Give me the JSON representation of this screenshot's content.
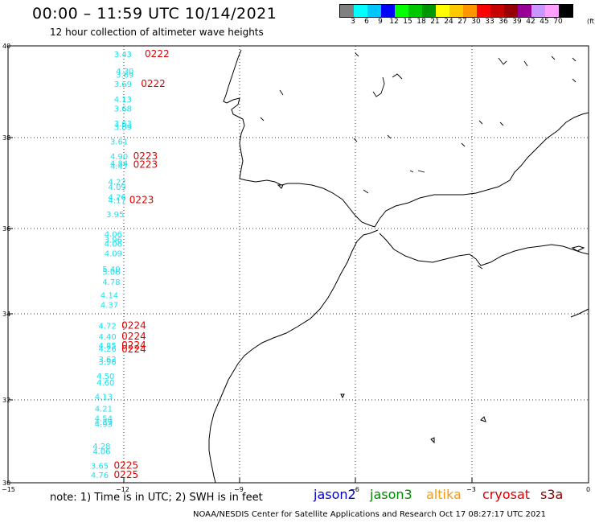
{
  "header": {
    "title": "00:00 – 11:59 UTC 10/14/2021",
    "subtitle": "12 hour collection of altimeter wave heights"
  },
  "colorbar": {
    "colors": [
      "#808080",
      "#00ffff",
      "#00c8ff",
      "#0000ff",
      "#00ff00",
      "#00c800",
      "#009600",
      "#ffff00",
      "#ffc800",
      "#ff9600",
      "#ff0000",
      "#c80000",
      "#960000",
      "#960096",
      "#c896ff",
      "#ffa0ff",
      "#000000"
    ],
    "labels": [
      "3",
      "6",
      "9",
      "12",
      "15",
      "18",
      "21",
      "24",
      "27",
      "30",
      "33",
      "36",
      "39",
      "42",
      "45",
      "70"
    ],
    "unit": "(ft)"
  },
  "axes": {
    "lat_labels": [
      "40",
      "38",
      "36",
      "34",
      "32",
      "30"
    ],
    "lon_labels": [
      "−15",
      "−12",
      "−9",
      "−6",
      "−3",
      "0"
    ]
  },
  "swh_values": [
    {
      "v": "3.43",
      "lon": -11.8,
      "lat": 39.82
    },
    {
      "v": "4.30",
      "lon": -11.75,
      "lat": 39.43
    },
    {
      "v": "3.69",
      "lon": -11.75,
      "lat": 39.35
    },
    {
      "v": "3.69",
      "lon": -11.8,
      "lat": 39.13
    },
    {
      "v": "4.13",
      "lon": -11.8,
      "lat": 38.78
    },
    {
      "v": "3.68",
      "lon": -11.8,
      "lat": 38.57
    },
    {
      "v": "3.63",
      "lon": -11.8,
      "lat": 38.23
    },
    {
      "v": "3.09",
      "lon": -11.8,
      "lat": 38.15
    },
    {
      "v": "3.61",
      "lon": -11.9,
      "lat": 37.82
    },
    {
      "v": "4.90",
      "lon": -11.9,
      "lat": 37.48
    },
    {
      "v": "4.84",
      "lon": -11.9,
      "lat": 37.32
    },
    {
      "v": "4.47",
      "lon": -11.9,
      "lat": 37.26
    },
    {
      "v": "4.22",
      "lon": -11.95,
      "lat": 36.9
    },
    {
      "v": "4.09",
      "lon": -11.95,
      "lat": 36.78
    },
    {
      "v": "4.26",
      "lon": -11.95,
      "lat": 36.55
    },
    {
      "v": "4.17",
      "lon": -11.95,
      "lat": 36.47
    },
    {
      "v": "3.95",
      "lon": -12.0,
      "lat": 36.15
    },
    {
      "v": "4.06",
      "lon": -12.05,
      "lat": 35.7
    },
    {
      "v": "3.96",
      "lon": -12.05,
      "lat": 35.57
    },
    {
      "v": "4.06",
      "lon": -12.05,
      "lat": 35.48
    },
    {
      "v": "4.09",
      "lon": -12.05,
      "lat": 35.26
    },
    {
      "v": "5.40",
      "lon": -12.1,
      "lat": 34.9
    },
    {
      "v": "5.06",
      "lon": -12.1,
      "lat": 34.83
    },
    {
      "v": "4.78",
      "lon": -12.1,
      "lat": 34.6
    },
    {
      "v": "4.14",
      "lon": -12.15,
      "lat": 34.3
    },
    {
      "v": "4.37",
      "lon": -12.15,
      "lat": 34.08
    },
    {
      "v": "4.72",
      "lon": -12.2,
      "lat": 33.6
    },
    {
      "v": "4.40",
      "lon": -12.2,
      "lat": 33.35
    },
    {
      "v": "4.85",
      "lon": -12.2,
      "lat": 33.15
    },
    {
      "v": "4.26",
      "lon": -12.2,
      "lat": 33.08
    },
    {
      "v": "3.62",
      "lon": -12.2,
      "lat": 32.84
    },
    {
      "v": "3.98",
      "lon": -12.2,
      "lat": 32.78
    },
    {
      "v": "4.50",
      "lon": -12.25,
      "lat": 32.45
    },
    {
      "v": "4.60",
      "lon": -12.25,
      "lat": 32.3
    },
    {
      "v": "4.13",
      "lon": -12.3,
      "lat": 31.98
    },
    {
      "v": "4.21",
      "lon": -12.3,
      "lat": 31.7
    },
    {
      "v": "4.54",
      "lon": -12.3,
      "lat": 31.48
    },
    {
      "v": "4.39",
      "lon": -12.3,
      "lat": 31.4
    },
    {
      "v": "4.93",
      "lon": -12.3,
      "lat": 31.35
    },
    {
      "v": "4.28",
      "lon": -12.35,
      "lat": 30.85
    },
    {
      "v": "4.06",
      "lon": -12.35,
      "lat": 30.73
    },
    {
      "v": "3.65",
      "lon": -12.4,
      "lat": 30.4
    },
    {
      "v": "4.76",
      "lon": -12.4,
      "lat": 30.18
    }
  ],
  "pass_labels": [
    {
      "t": "0222",
      "lon": -11.55,
      "lat": 39.82
    },
    {
      "t": "0222",
      "lon": -11.65,
      "lat": 39.13
    },
    {
      "t": "0223",
      "lon": -11.85,
      "lat": 37.48
    },
    {
      "t": "0223",
      "lon": -11.85,
      "lat": 37.28
    },
    {
      "t": "0223",
      "lon": -11.95,
      "lat": 36.47
    },
    {
      "t": "0224",
      "lon": -12.15,
      "lat": 33.6
    },
    {
      "t": "0224",
      "lon": -12.15,
      "lat": 33.35
    },
    {
      "t": "0224",
      "lon": -12.15,
      "lat": 33.15
    },
    {
      "t": "0224",
      "lon": -12.15,
      "lat": 33.06
    },
    {
      "t": "0225",
      "lon": -12.35,
      "lat": 30.4
    },
    {
      "t": "0225",
      "lon": -12.35,
      "lat": 30.18
    }
  ],
  "footer": {
    "note": "note:  1) Time is in UTC;  2) SWH is in feet",
    "legend": [
      {
        "name": "jason2",
        "color": "#0000cc"
      },
      {
        "name": "jason3",
        "color": "#008800"
      },
      {
        "name": "altika",
        "color": "#ff9900"
      },
      {
        "name": "cryosat",
        "color": "#dd0000"
      },
      {
        "name": "s3a",
        "color": "#880000"
      }
    ],
    "credit": "NOAA/NESDIS Center for Satellite Applications and Research    Oct 17 08:27:17 UTC 2021"
  }
}
